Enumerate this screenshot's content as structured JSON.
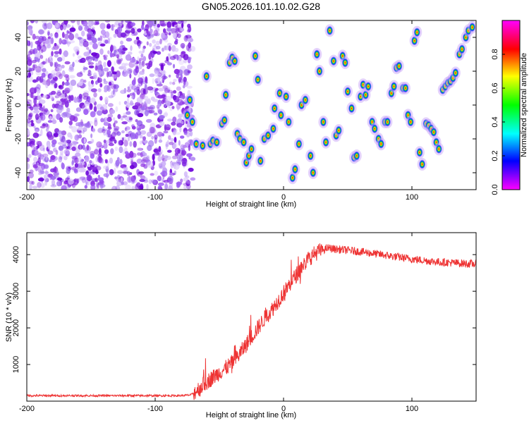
{
  "title": "GN05.2026.101.10.02.G28",
  "colors": {
    "series": "#ee3333",
    "spectrum_noise": "#8a2be2"
  },
  "chart_data": [
    {
      "type": "heatmap",
      "name": "spectrogram",
      "xlabel": "Height of straight line (km)",
      "ylabel": "Frequency (Hz)",
      "xlim": [
        -200,
        150
      ],
      "ylim": [
        -50,
        50
      ],
      "xticks": [
        "-200",
        "-100",
        "0",
        "100"
      ],
      "yticks": [
        "-40",
        "-20",
        "0",
        "20",
        "40"
      ],
      "colorbar": {
        "label": "Normalized spectral amplitude",
        "range": [
          0,
          1
        ],
        "ticks": [
          "0.0",
          "0.2",
          "0.4",
          "0.6",
          "0.8"
        ],
        "colormap": [
          "#ff00ff",
          "#0000ff",
          "#00ffff",
          "#00ff00",
          "#ffff00",
          "#ff0000",
          "#ff00ff"
        ]
      },
      "noise_region": {
        "x_start": -200,
        "x_end": -75
      },
      "peaks": [
        {
          "x": -73,
          "y": 3
        },
        {
          "x": -75,
          "y": -6
        },
        {
          "x": -71,
          "y": -10
        },
        {
          "x": -68,
          "y": -23
        },
        {
          "x": -63,
          "y": -24
        },
        {
          "x": -60,
          "y": 17
        },
        {
          "x": -57,
          "y": -23
        },
        {
          "x": -55,
          "y": -21
        },
        {
          "x": -52,
          "y": -22
        },
        {
          "x": -48,
          "y": -11
        },
        {
          "x": -46,
          "y": -9
        },
        {
          "x": -45,
          "y": 6
        },
        {
          "x": -42,
          "y": 25
        },
        {
          "x": -40,
          "y": 28
        },
        {
          "x": -38,
          "y": 26
        },
        {
          "x": -36,
          "y": -17
        },
        {
          "x": -34,
          "y": -20
        },
        {
          "x": -31,
          "y": -22
        },
        {
          "x": -29,
          "y": -34
        },
        {
          "x": -27,
          "y": -30
        },
        {
          "x": -25,
          "y": -26
        },
        {
          "x": -22,
          "y": 29
        },
        {
          "x": -20,
          "y": 15
        },
        {
          "x": -18,
          "y": -33
        },
        {
          "x": -15,
          "y": -20
        },
        {
          "x": -12,
          "y": -18
        },
        {
          "x": -8,
          "y": -14
        },
        {
          "x": -7,
          "y": -2
        },
        {
          "x": -3,
          "y": 7
        },
        {
          "x": -2,
          "y": -6
        },
        {
          "x": 2,
          "y": 5
        },
        {
          "x": 4,
          "y": -10
        },
        {
          "x": 7,
          "y": -43
        },
        {
          "x": 9,
          "y": -38
        },
        {
          "x": 12,
          "y": -23
        },
        {
          "x": 14,
          "y": 0
        },
        {
          "x": 17,
          "y": 3
        },
        {
          "x": 21,
          "y": -30
        },
        {
          "x": 23,
          "y": -40
        },
        {
          "x": 26,
          "y": 30
        },
        {
          "x": 28,
          "y": 20
        },
        {
          "x": 31,
          "y": -10
        },
        {
          "x": 33,
          "y": -22
        },
        {
          "x": 36,
          "y": 44
        },
        {
          "x": 39,
          "y": 26
        },
        {
          "x": 41,
          "y": -18
        },
        {
          "x": 43,
          "y": -15
        },
        {
          "x": 46,
          "y": 29
        },
        {
          "x": 48,
          "y": 25
        },
        {
          "x": 50,
          "y": 8
        },
        {
          "x": 53,
          "y": -2
        },
        {
          "x": 55,
          "y": -31
        },
        {
          "x": 57,
          "y": -30
        },
        {
          "x": 60,
          "y": 5
        },
        {
          "x": 62,
          "y": 12
        },
        {
          "x": 64,
          "y": 6
        },
        {
          "x": 66,
          "y": 11
        },
        {
          "x": 69,
          "y": -10
        },
        {
          "x": 71,
          "y": -14
        },
        {
          "x": 74,
          "y": -20
        },
        {
          "x": 76,
          "y": -23
        },
        {
          "x": 79,
          "y": -10
        },
        {
          "x": 81,
          "y": -10
        },
        {
          "x": 84,
          "y": 7
        },
        {
          "x": 86,
          "y": 11
        },
        {
          "x": 88,
          "y": 22
        },
        {
          "x": 90,
          "y": 23
        },
        {
          "x": 93,
          "y": 10
        },
        {
          "x": 95,
          "y": 10
        },
        {
          "x": 97,
          "y": -6
        },
        {
          "x": 99,
          "y": -10
        },
        {
          "x": 102,
          "y": 38
        },
        {
          "x": 104,
          "y": 43
        },
        {
          "x": 106,
          "y": -28
        },
        {
          "x": 108,
          "y": -35
        },
        {
          "x": 111,
          "y": -11
        },
        {
          "x": 113,
          "y": -12
        },
        {
          "x": 115,
          "y": -14
        },
        {
          "x": 117,
          "y": -16
        },
        {
          "x": 119,
          "y": -22
        },
        {
          "x": 121,
          "y": -26
        },
        {
          "x": 124,
          "y": 9
        },
        {
          "x": 126,
          "y": 11
        },
        {
          "x": 128,
          "y": 13
        },
        {
          "x": 130,
          "y": 14
        },
        {
          "x": 132,
          "y": 16
        },
        {
          "x": 134,
          "y": 19
        },
        {
          "x": 137,
          "y": 30
        },
        {
          "x": 139,
          "y": 33
        },
        {
          "x": 142,
          "y": 40
        },
        {
          "x": 144,
          "y": 44
        },
        {
          "x": 147,
          "y": 46
        }
      ]
    },
    {
      "type": "line",
      "name": "snr",
      "xlabel": "Height of straight line (km)",
      "ylabel": "SNR (10 * v/v)",
      "xlim": [
        -200,
        150
      ],
      "ylim": [
        0,
        4600
      ],
      "xticks": [
        "-200",
        "-100",
        "0",
        "100"
      ],
      "yticks": [
        "1000",
        "2000",
        "3000",
        "4000"
      ],
      "x": [
        -200,
        -180,
        -160,
        -140,
        -120,
        -100,
        -80,
        -72,
        -66,
        -60,
        -55,
        -50,
        -45,
        -40,
        -35,
        -30,
        -25,
        -20,
        -15,
        -10,
        -5,
        0,
        5,
        10,
        15,
        20,
        25,
        30,
        35,
        40,
        50,
        60,
        70,
        80,
        90,
        100,
        110,
        120,
        130,
        140,
        150
      ],
      "y": [
        150,
        150,
        150,
        150,
        150,
        150,
        150,
        170,
        350,
        520,
        650,
        780,
        900,
        1050,
        1250,
        1500,
        1750,
        2000,
        2250,
        2450,
        2700,
        2950,
        3200,
        3450,
        3700,
        3900,
        4050,
        4120,
        4180,
        4150,
        4120,
        4080,
        4030,
        3980,
        3930,
        3880,
        3840,
        3800,
        3780,
        3760,
        3740
      ]
    }
  ]
}
